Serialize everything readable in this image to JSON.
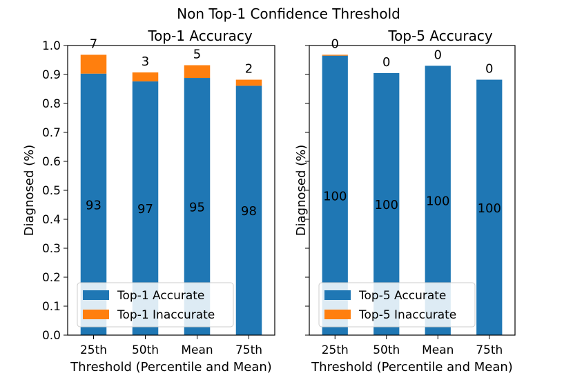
{
  "figure": {
    "suptitle": "Non Top-1 Confidence Threshold"
  },
  "chart_data": [
    {
      "type": "bar",
      "stacked": true,
      "title": "Top-1 Accuracy",
      "xlabel": "Threshold (Percentile and Mean)",
      "ylabel": "Diagnosed (%)",
      "ylim": [
        0,
        1.0
      ],
      "yticks": [
        "0.0",
        "0.1",
        "0.2",
        "0.3",
        "0.4",
        "0.5",
        "0.6",
        "0.7",
        "0.8",
        "0.9",
        "1.0"
      ],
      "grid": false,
      "legend_position": "lower-left",
      "categories": [
        "25th",
        "50th",
        "Mean",
        "75th"
      ],
      "series": [
        {
          "name": "Top-1 Accurate",
          "color": "#1f77b4",
          "values": [
            0.903,
            0.876,
            0.888,
            0.861
          ],
          "labels": [
            "93",
            "97",
            "95",
            "98"
          ]
        },
        {
          "name": "Top-1 Inaccurate",
          "color": "#ff7f0e",
          "values": [
            0.065,
            0.031,
            0.044,
            0.021
          ],
          "labels": [
            "7",
            "3",
            "5",
            "2"
          ]
        }
      ]
    },
    {
      "type": "bar",
      "stacked": true,
      "title": "Top-5 Accuracy",
      "xlabel": "Threshold (Percentile and Mean)",
      "ylabel": "Diagnosed (%)",
      "ylim": [
        0,
        1.0
      ],
      "yticks": [],
      "grid": false,
      "legend_position": "lower-left",
      "categories": [
        "25th",
        "50th",
        "Mean",
        "75th"
      ],
      "series": [
        {
          "name": "Top-5 Accurate",
          "color": "#1f77b4",
          "values": [
            0.965,
            0.905,
            0.93,
            0.882
          ],
          "labels": [
            "100",
            "100",
            "100",
            "100"
          ]
        },
        {
          "name": "Top-5 Inaccurate",
          "color": "#ff7f0e",
          "values": [
            0.003,
            0.0,
            0.0,
            0.0
          ],
          "labels": [
            "0",
            "0",
            "0",
            "0"
          ]
        }
      ]
    }
  ]
}
